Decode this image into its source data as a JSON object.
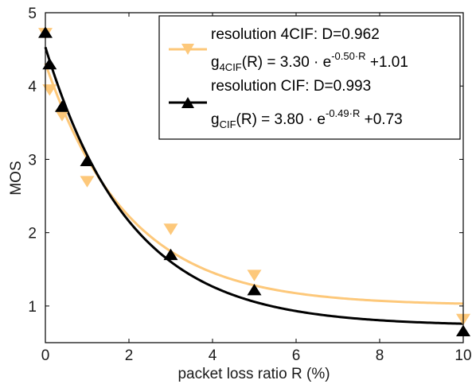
{
  "chart_data": {
    "type": "scatter",
    "xlabel": "packet loss ratio R (%)",
    "ylabel": "MOS",
    "xlim": [
      0,
      10
    ],
    "ylim": [
      0.5,
      5
    ],
    "xticks": [
      "0",
      "2",
      "4",
      "6",
      "8",
      "10"
    ],
    "yticks": [
      "1",
      "2",
      "3",
      "4",
      "5"
    ],
    "grid": false,
    "legend_position": "top-right",
    "series": [
      {
        "name": "resolution 4CIF",
        "color": "#fdc87a",
        "marker": "triangle-down",
        "points": [
          {
            "x": 0,
            "y": 4.72
          },
          {
            "x": 0.1,
            "y": 3.95
          },
          {
            "x": 0.4,
            "y": 3.6
          },
          {
            "x": 1,
            "y": 2.7
          },
          {
            "x": 3,
            "y": 2.05
          },
          {
            "x": 5,
            "y": 1.42
          },
          {
            "x": 10,
            "y": 0.82
          }
        ],
        "fit": {
          "a": 3.3,
          "b": 0.5,
          "c": 1.01
        }
      },
      {
        "name": "resolution CIF",
        "color": "#000000",
        "marker": "triangle-up",
        "points": [
          {
            "x": 0,
            "y": 4.73
          },
          {
            "x": 0.1,
            "y": 4.3
          },
          {
            "x": 0.4,
            "y": 3.72
          },
          {
            "x": 1,
            "y": 2.98
          },
          {
            "x": 3,
            "y": 1.7
          },
          {
            "x": 5,
            "y": 1.22
          },
          {
            "x": 10,
            "y": 0.66
          }
        ],
        "fit": {
          "a": 3.8,
          "b": 0.49,
          "c": 0.73
        }
      }
    ]
  },
  "legend": [
    {
      "title": "resolution 4CIF: D=0.962",
      "g": "g",
      "sub": "4CIF",
      "mid": "(R) = 3.30 · e",
      "sup": "-0.50·R",
      "tail": " +1.01"
    },
    {
      "title": "resolution CIF: D=0.993",
      "g": "g",
      "sub": "CIF",
      "mid": "(R) = 3.80 · e",
      "sup": "-0.49·R",
      "tail": " +0.73"
    }
  ]
}
